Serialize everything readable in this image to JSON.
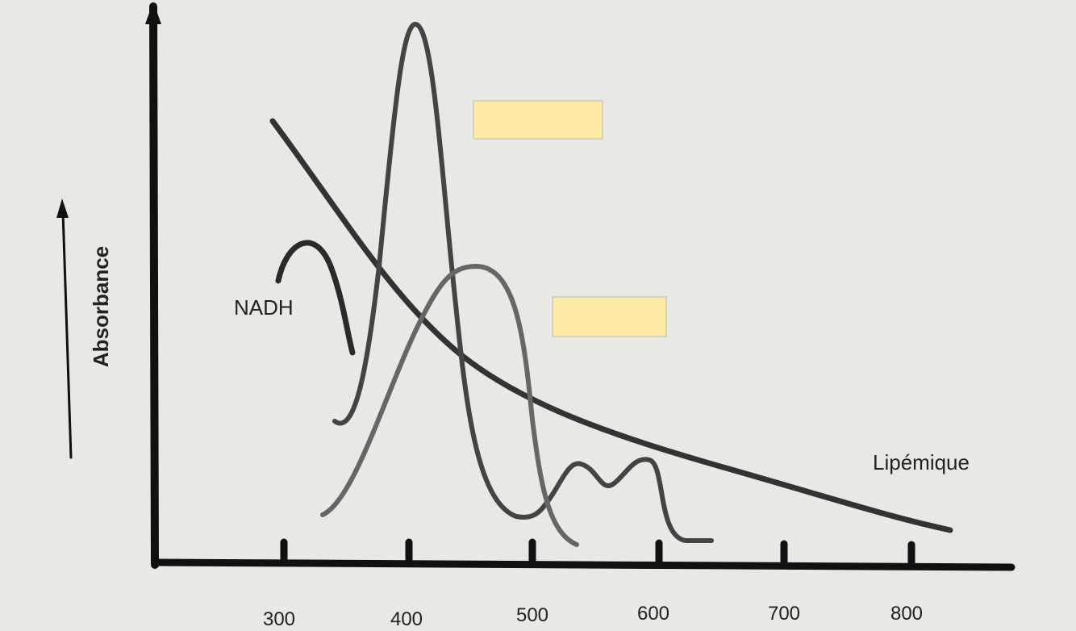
{
  "axes": {
    "y_label": "Absorbance",
    "x_ticks": [
      "300",
      "400",
      "500",
      "600",
      "700",
      "800"
    ]
  },
  "curves": [
    {
      "label": "NADH"
    },
    {
      "label": "Lipémique"
    }
  ]
}
